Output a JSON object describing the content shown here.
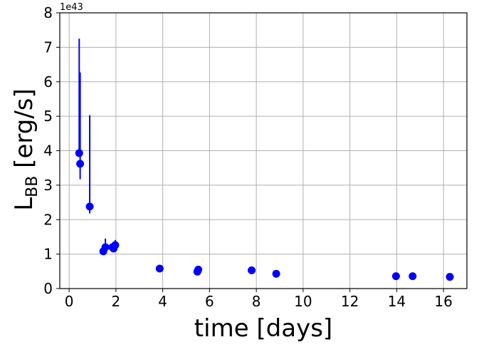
{
  "chart_data": {
    "type": "scatter",
    "title": "",
    "xlabel": "time [days]",
    "ylabel_main": "L",
    "ylabel_sub": "BB",
    "ylabel_unit": " [erg/s]",
    "y_offset_text": "1e43",
    "xlim": [
      -0.4,
      17.0
    ],
    "ylim": [
      0,
      8
    ],
    "xticks": [
      0,
      2,
      4,
      6,
      8,
      10,
      12,
      14,
      16
    ],
    "yticks": [
      0,
      1,
      2,
      3,
      4,
      5,
      6,
      7,
      8
    ],
    "grid": true,
    "color": "#0000ff",
    "series": [
      {
        "points": [
          {
            "x": 0.43,
            "y": 3.93,
            "err_lo": 0.0,
            "err_hi": 3.32
          },
          {
            "x": 0.47,
            "y": 3.62,
            "err_lo": 0.45,
            "err_hi": 2.65
          },
          {
            "x": 0.88,
            "y": 2.38,
            "err_lo": 0.2,
            "err_hi": 2.65
          },
          {
            "x": 1.46,
            "y": 1.08,
            "err_lo": 0.0,
            "err_hi": 0.0
          },
          {
            "x": 1.55,
            "y": 1.2,
            "err_lo": 0.15,
            "err_hi": 0.25
          },
          {
            "x": 1.85,
            "y": 1.2,
            "err_lo": 0.1,
            "err_hi": 0.1
          },
          {
            "x": 1.9,
            "y": 1.16,
            "err_lo": 0.05,
            "err_hi": 0.1
          },
          {
            "x": 1.97,
            "y": 1.26,
            "err_lo": 0.0,
            "err_hi": 0.15
          },
          {
            "x": 3.87,
            "y": 0.58,
            "err_lo": 0.0,
            "err_hi": 0.0
          },
          {
            "x": 5.48,
            "y": 0.49,
            "err_lo": 0.0,
            "err_hi": 0.0
          },
          {
            "x": 5.52,
            "y": 0.55,
            "err_lo": 0.0,
            "err_hi": 0.0
          },
          {
            "x": 7.8,
            "y": 0.53,
            "err_lo": 0.0,
            "err_hi": 0.0
          },
          {
            "x": 8.85,
            "y": 0.43,
            "err_lo": 0.0,
            "err_hi": 0.0
          },
          {
            "x": 13.97,
            "y": 0.36,
            "err_lo": 0.0,
            "err_hi": 0.0
          },
          {
            "x": 14.68,
            "y": 0.36,
            "err_lo": 0.0,
            "err_hi": 0.0
          },
          {
            "x": 16.27,
            "y": 0.34,
            "err_lo": 0.0,
            "err_hi": 0.0
          }
        ]
      }
    ]
  }
}
